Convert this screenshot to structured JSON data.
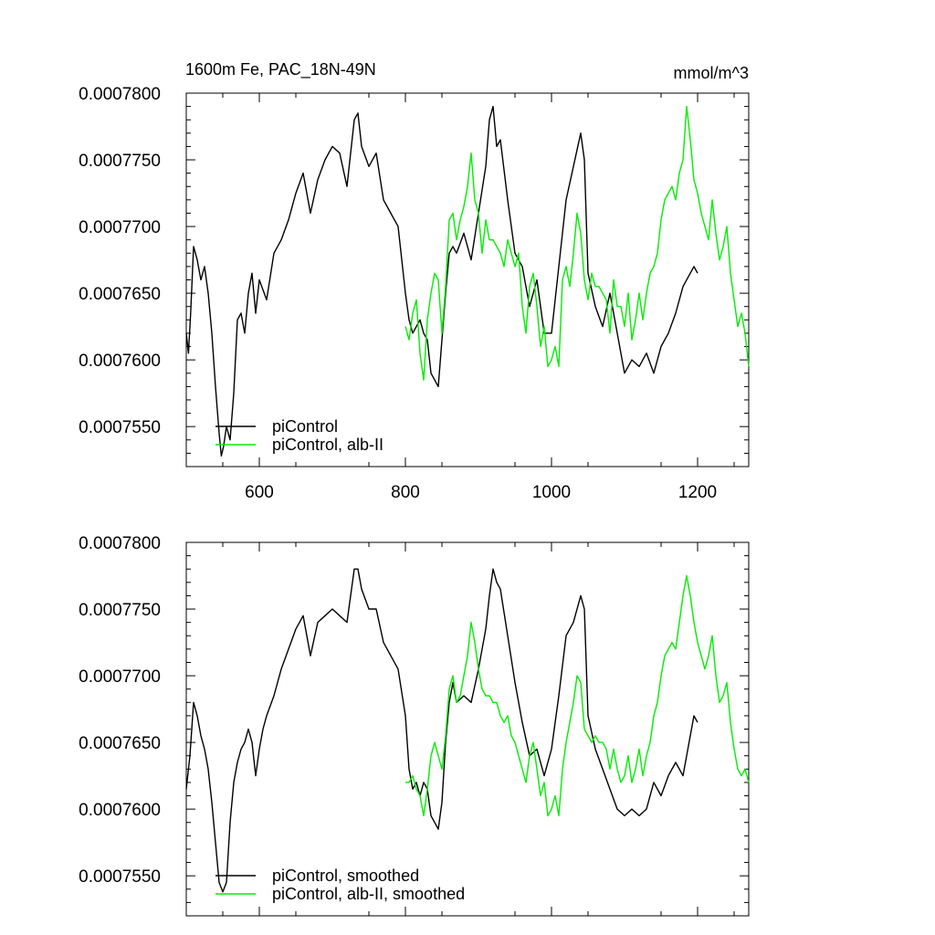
{
  "figure": {
    "title_left": "1600m Fe, PAC_18N-49N",
    "title_right": "mmol/m^3"
  },
  "chart_data": [
    {
      "type": "line",
      "title": "1600m Fe, PAC_18N-49N",
      "units": "mmol/m^3",
      "xlim": [
        500,
        1270
      ],
      "ylim": [
        0.000752,
        0.00078
      ],
      "xticks": [
        600,
        800,
        1000,
        1200
      ],
      "xtick_labels": [
        "600",
        "800",
        "1000",
        "1200"
      ],
      "yticks": [
        0.000755,
        0.00076,
        0.000765,
        0.00077,
        0.000775,
        0.00078
      ],
      "ytick_labels": [
        "0.0007550",
        "0.0007600",
        "0.0007650",
        "0.0007700",
        "0.0007750",
        "0.0007800"
      ],
      "show_xtick_labels": true,
      "legend_position": "bottom-left",
      "grid": false,
      "series": [
        {
          "name": "piControl",
          "color": "#000000",
          "x": [
            500,
            503,
            506,
            510,
            515,
            520,
            525,
            530,
            535,
            540,
            545,
            548,
            551,
            555,
            560,
            565,
            570,
            575,
            580,
            585,
            590,
            595,
            600,
            610,
            620,
            630,
            640,
            650,
            660,
            670,
            680,
            690,
            700,
            710,
            720,
            730,
            735,
            740,
            750,
            760,
            770,
            780,
            790,
            800,
            805,
            810,
            815,
            820,
            825,
            830,
            835,
            840,
            845,
            850,
            855,
            860,
            865,
            870,
            880,
            890,
            900,
            910,
            915,
            920,
            925,
            930,
            940,
            950,
            960,
            970,
            980,
            990,
            1000,
            1010,
            1020,
            1030,
            1040,
            1045,
            1050,
            1060,
            1070,
            1080,
            1090,
            1100,
            1110,
            1120,
            1130,
            1140,
            1150,
            1160,
            1170,
            1180,
            1190,
            1195,
            1200
          ],
          "y": [
            0.000762,
            0.0007605,
            0.0007635,
            0.0007685,
            0.0007675,
            0.000766,
            0.000767,
            0.000765,
            0.000762,
            0.000758,
            0.0007545,
            0.0007528,
            0.0007535,
            0.000755,
            0.000754,
            0.0007575,
            0.000763,
            0.0007635,
            0.000762,
            0.000765,
            0.0007665,
            0.0007635,
            0.000766,
            0.0007645,
            0.000768,
            0.000769,
            0.0007705,
            0.0007725,
            0.000774,
            0.000771,
            0.0007735,
            0.000775,
            0.000776,
            0.0007755,
            0.000773,
            0.000778,
            0.0007785,
            0.000776,
            0.0007745,
            0.0007755,
            0.000772,
            0.000771,
            0.00077,
            0.000765,
            0.000763,
            0.000762,
            0.0007625,
            0.000763,
            0.000762,
            0.0007615,
            0.000759,
            0.0007585,
            0.000758,
            0.0007615,
            0.000765,
            0.000768,
            0.0007685,
            0.000768,
            0.0007695,
            0.0007675,
            0.000771,
            0.0007745,
            0.000778,
            0.000779,
            0.000776,
            0.0007765,
            0.000772,
            0.000768,
            0.000767,
            0.000764,
            0.000766,
            0.000762,
            0.000762,
            0.000767,
            0.000772,
            0.0007745,
            0.000777,
            0.000775,
            0.0007665,
            0.000764,
            0.0007625,
            0.000765,
            0.000762,
            0.000759,
            0.00076,
            0.0007595,
            0.0007605,
            0.000759,
            0.000761,
            0.000762,
            0.0007635,
            0.0007655,
            0.0007665,
            0.000767,
            0.0007665
          ]
        },
        {
          "name": "piControl, alb-II",
          "color": "#00ee00",
          "x": [
            800,
            805,
            810,
            815,
            820,
            825,
            830,
            835,
            840,
            845,
            850,
            855,
            860,
            865,
            870,
            875,
            880,
            885,
            890,
            895,
            900,
            905,
            910,
            915,
            920,
            925,
            930,
            935,
            940,
            945,
            950,
            955,
            960,
            965,
            970,
            975,
            980,
            985,
            990,
            995,
            1000,
            1005,
            1010,
            1015,
            1020,
            1025,
            1030,
            1035,
            1040,
            1045,
            1050,
            1055,
            1060,
            1065,
            1070,
            1075,
            1080,
            1085,
            1090,
            1095,
            1100,
            1105,
            1110,
            1115,
            1120,
            1125,
            1130,
            1135,
            1140,
            1145,
            1150,
            1155,
            1160,
            1165,
            1170,
            1175,
            1180,
            1185,
            1190,
            1195,
            1200,
            1205,
            1210,
            1215,
            1220,
            1225,
            1230,
            1235,
            1240,
            1245,
            1250,
            1255,
            1260,
            1265,
            1270
          ],
          "y": [
            0.0007625,
            0.0007615,
            0.0007635,
            0.0007645,
            0.0007605,
            0.0007585,
            0.000763,
            0.000765,
            0.0007665,
            0.000766,
            0.000762,
            0.0007655,
            0.0007705,
            0.000771,
            0.000769,
            0.0007705,
            0.0007715,
            0.000773,
            0.0007755,
            0.000772,
            0.000771,
            0.000768,
            0.0007705,
            0.000769,
            0.000769,
            0.0007685,
            0.000768,
            0.000767,
            0.000769,
            0.000768,
            0.000767,
            0.000768,
            0.000764,
            0.000762,
            0.0007655,
            0.0007665,
            0.000764,
            0.000761,
            0.0007625,
            0.0007595,
            0.00076,
            0.000761,
            0.0007595,
            0.000766,
            0.000767,
            0.0007655,
            0.000768,
            0.000771,
            0.0007695,
            0.000766,
            0.0007645,
            0.0007665,
            0.0007655,
            0.0007655,
            0.000765,
            0.0007645,
            0.000762,
            0.000766,
            0.000764,
            0.000764,
            0.0007625,
            0.000765,
            0.0007615,
            0.000763,
            0.000765,
            0.000763,
            0.000765,
            0.0007665,
            0.000767,
            0.000768,
            0.0007705,
            0.000772,
            0.0007725,
            0.000773,
            0.000772,
            0.000774,
            0.000775,
            0.000779,
            0.0007765,
            0.0007735,
            0.0007725,
            0.000771,
            0.00077,
            0.000769,
            0.000772,
            0.0007695,
            0.0007675,
            0.0007685,
            0.00077,
            0.0007665,
            0.0007645,
            0.0007625,
            0.0007635,
            0.000762,
            0.0007595
          ]
        }
      ]
    },
    {
      "type": "line",
      "xlim": [
        500,
        1270
      ],
      "ylim": [
        0.000752,
        0.00078
      ],
      "xticks": [
        600,
        800,
        1000,
        1200
      ],
      "yticks": [
        0.000755,
        0.00076,
        0.000765,
        0.00077,
        0.000775,
        0.00078
      ],
      "ytick_labels": [
        "0.0007550",
        "0.0007600",
        "0.0007650",
        "0.0007700",
        "0.0007750",
        "0.0007800"
      ],
      "show_xtick_labels": false,
      "legend_position": "bottom-left",
      "grid": false,
      "series": [
        {
          "name": "piControl, smoothed",
          "color": "#000000",
          "x": [
            500,
            505,
            510,
            515,
            520,
            525,
            530,
            535,
            540,
            545,
            550,
            555,
            560,
            565,
            570,
            575,
            580,
            585,
            590,
            595,
            600,
            605,
            610,
            620,
            630,
            640,
            650,
            660,
            670,
            680,
            690,
            700,
            710,
            720,
            730,
            735,
            740,
            750,
            760,
            770,
            780,
            790,
            800,
            805,
            810,
            815,
            820,
            825,
            830,
            835,
            840,
            845,
            850,
            855,
            860,
            865,
            870,
            880,
            890,
            900,
            910,
            915,
            920,
            925,
            930,
            940,
            950,
            960,
            970,
            980,
            990,
            1000,
            1010,
            1020,
            1030,
            1040,
            1045,
            1050,
            1060,
            1070,
            1080,
            1090,
            1100,
            1110,
            1120,
            1130,
            1140,
            1150,
            1160,
            1170,
            1180,
            1190,
            1195,
            1200
          ],
          "y": [
            0.0007615,
            0.000764,
            0.000768,
            0.000767,
            0.0007655,
            0.0007645,
            0.000763,
            0.0007605,
            0.0007575,
            0.0007545,
            0.0007538,
            0.0007545,
            0.000759,
            0.000762,
            0.0007635,
            0.0007645,
            0.000765,
            0.000766,
            0.000765,
            0.0007625,
            0.0007645,
            0.000766,
            0.000767,
            0.0007685,
            0.0007705,
            0.000772,
            0.0007735,
            0.0007745,
            0.0007715,
            0.000774,
            0.0007745,
            0.000775,
            0.0007745,
            0.000774,
            0.000778,
            0.000778,
            0.0007765,
            0.000775,
            0.000775,
            0.0007725,
            0.0007715,
            0.0007705,
            0.000767,
            0.000763,
            0.0007615,
            0.000762,
            0.000761,
            0.000762,
            0.0007615,
            0.0007595,
            0.000759,
            0.0007585,
            0.0007605,
            0.000765,
            0.000768,
            0.0007695,
            0.000768,
            0.0007685,
            0.000768,
            0.0007705,
            0.0007735,
            0.000776,
            0.000778,
            0.000777,
            0.0007765,
            0.000773,
            0.0007695,
            0.0007665,
            0.000764,
            0.0007645,
            0.0007625,
            0.0007645,
            0.0007685,
            0.000773,
            0.000774,
            0.000776,
            0.000775,
            0.000767,
            0.0007645,
            0.000763,
            0.0007615,
            0.00076,
            0.0007595,
            0.00076,
            0.0007595,
            0.00076,
            0.000762,
            0.000761,
            0.0007625,
            0.0007635,
            0.0007625,
            0.0007655,
            0.000767,
            0.0007665
          ]
        },
        {
          "name": "piControl, alb-II, smoothed",
          "color": "#00ee00",
          "x": [
            800,
            805,
            810,
            815,
            820,
            825,
            830,
            835,
            840,
            845,
            850,
            855,
            860,
            865,
            870,
            875,
            880,
            885,
            890,
            895,
            900,
            905,
            910,
            915,
            920,
            925,
            930,
            935,
            940,
            945,
            950,
            955,
            960,
            965,
            970,
            975,
            980,
            985,
            990,
            995,
            1000,
            1005,
            1010,
            1015,
            1020,
            1025,
            1030,
            1035,
            1040,
            1045,
            1050,
            1055,
            1060,
            1065,
            1070,
            1075,
            1080,
            1085,
            1090,
            1095,
            1100,
            1105,
            1110,
            1115,
            1120,
            1125,
            1130,
            1135,
            1140,
            1145,
            1150,
            1155,
            1160,
            1165,
            1170,
            1175,
            1180,
            1185,
            1190,
            1195,
            1200,
            1205,
            1210,
            1215,
            1220,
            1225,
            1230,
            1235,
            1240,
            1245,
            1250,
            1255,
            1260,
            1265,
            1270
          ],
          "y": [
            0.000762,
            0.000762,
            0.0007625,
            0.0007615,
            0.000761,
            0.0007595,
            0.0007615,
            0.000764,
            0.000765,
            0.000764,
            0.000763,
            0.0007655,
            0.000769,
            0.00077,
            0.000768,
            0.0007685,
            0.00077,
            0.0007715,
            0.000774,
            0.0007725,
            0.0007705,
            0.000769,
            0.0007685,
            0.0007685,
            0.000768,
            0.000768,
            0.000767,
            0.0007665,
            0.000767,
            0.0007655,
            0.000765,
            0.000764,
            0.000763,
            0.000762,
            0.000764,
            0.000765,
            0.000763,
            0.000761,
            0.000762,
            0.0007595,
            0.00076,
            0.000761,
            0.0007595,
            0.000763,
            0.000765,
            0.0007665,
            0.000768,
            0.00077,
            0.0007695,
            0.000766,
            0.0007655,
            0.000765,
            0.0007655,
            0.000765,
            0.000765,
            0.0007645,
            0.000763,
            0.0007645,
            0.000763,
            0.000762,
            0.0007625,
            0.000764,
            0.000762,
            0.000763,
            0.0007645,
            0.0007625,
            0.000764,
            0.000765,
            0.000767,
            0.000768,
            0.00077,
            0.0007715,
            0.000772,
            0.0007725,
            0.000772,
            0.000774,
            0.000776,
            0.0007775,
            0.000776,
            0.000774,
            0.0007725,
            0.0007715,
            0.0007705,
            0.0007715,
            0.000773,
            0.00077,
            0.000768,
            0.0007685,
            0.0007695,
            0.0007665,
            0.0007645,
            0.000763,
            0.0007625,
            0.000763,
            0.000762
          ]
        }
      ]
    }
  ]
}
